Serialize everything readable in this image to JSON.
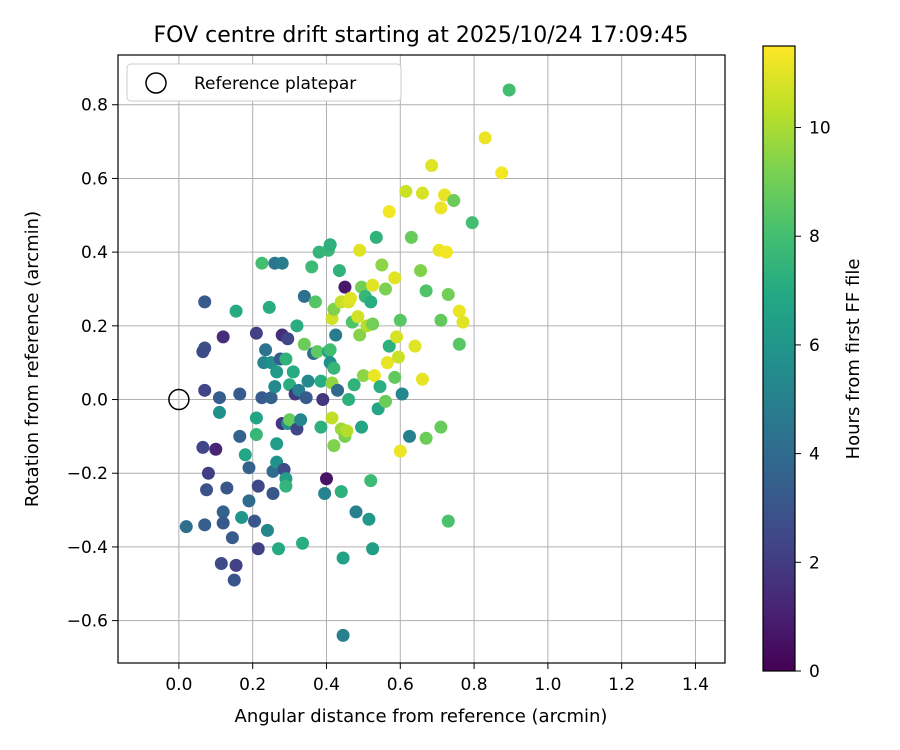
{
  "chart_data": {
    "type": "scatter",
    "title": "FOV centre drift starting at 2025/10/24 17:09:45",
    "xlabel": "Angular distance from reference (arcmin)",
    "ylabel": "Rotation from reference (arcmin)",
    "xlim": [
      -0.165,
      1.48
    ],
    "ylim": [
      -0.715,
      0.935
    ],
    "xticks": [
      0.0,
      0.2,
      0.4,
      0.6,
      0.8,
      1.0,
      1.2,
      1.4
    ],
    "xtick_labels": [
      "0.0",
      "0.2",
      "0.4",
      "0.6",
      "0.8",
      "1.0",
      "1.2",
      "1.4"
    ],
    "yticks": [
      -0.6,
      -0.4,
      -0.2,
      0.0,
      0.2,
      0.4,
      0.6,
      0.8
    ],
    "ytick_labels": [
      "−0.6",
      "−0.4",
      "−0.2",
      "0.0",
      "0.2",
      "0.4",
      "0.6",
      "0.8"
    ],
    "grid": true,
    "legend": {
      "position": "top-left",
      "label": "Reference platepar"
    },
    "reference_point": {
      "x": 0.0,
      "y": 0.0
    },
    "colorbar": {
      "label": "Hours from first FF file",
      "range": [
        0,
        11.5
      ],
      "ticks": [
        0,
        2,
        4,
        6,
        8,
        10
      ],
      "tick_labels": [
        "0",
        "2",
        "4",
        "6",
        "8",
        "10"
      ],
      "colormap": "viridis"
    },
    "points": [
      {
        "x": 0.07,
        "y": 0.265,
        "h": 3.2
      },
      {
        "x": 0.07,
        "y": 0.14,
        "h": 2.8
      },
      {
        "x": 0.065,
        "y": 0.13,
        "h": 2.6
      },
      {
        "x": 0.12,
        "y": 0.17,
        "h": 1.5
      },
      {
        "x": 0.07,
        "y": 0.025,
        "h": 2.3
      },
      {
        "x": 0.11,
        "y": 0.005,
        "h": 3.4
      },
      {
        "x": 0.065,
        "y": -0.13,
        "h": 2.4
      },
      {
        "x": 0.1,
        "y": -0.135,
        "h": 1.2
      },
      {
        "x": 0.08,
        "y": -0.2,
        "h": 2.1
      },
      {
        "x": 0.075,
        "y": -0.245,
        "h": 2.9
      },
      {
        "x": 0.13,
        "y": -0.24,
        "h": 3.1
      },
      {
        "x": 0.02,
        "y": -0.345,
        "h": 4.2
      },
      {
        "x": 0.07,
        "y": -0.34,
        "h": 3.4
      },
      {
        "x": 0.12,
        "y": -0.305,
        "h": 3.6
      },
      {
        "x": 0.12,
        "y": -0.335,
        "h": 3.2
      },
      {
        "x": 0.145,
        "y": -0.375,
        "h": 3.3
      },
      {
        "x": 0.115,
        "y": -0.445,
        "h": 2.6
      },
      {
        "x": 0.155,
        "y": -0.45,
        "h": 2.2
      },
      {
        "x": 0.15,
        "y": -0.49,
        "h": 3.0
      },
      {
        "x": 0.11,
        "y": -0.035,
        "h": 5.7
      },
      {
        "x": 0.155,
        "y": 0.24,
        "h": 7.0
      },
      {
        "x": 0.165,
        "y": 0.015,
        "h": 3.3
      },
      {
        "x": 0.165,
        "y": -0.1,
        "h": 3.6
      },
      {
        "x": 0.18,
        "y": -0.15,
        "h": 6.8
      },
      {
        "x": 0.19,
        "y": -0.185,
        "h": 3.6
      },
      {
        "x": 0.19,
        "y": -0.275,
        "h": 4.0
      },
      {
        "x": 0.17,
        "y": -0.32,
        "h": 6.0
      },
      {
        "x": 0.205,
        "y": -0.33,
        "h": 3.1
      },
      {
        "x": 0.21,
        "y": 0.18,
        "h": 2.2
      },
      {
        "x": 0.21,
        "y": -0.05,
        "h": 6.7
      },
      {
        "x": 0.21,
        "y": -0.095,
        "h": 7.6
      },
      {
        "x": 0.215,
        "y": -0.235,
        "h": 2.5
      },
      {
        "x": 0.215,
        "y": -0.405,
        "h": 2.2
      },
      {
        "x": 0.225,
        "y": 0.005,
        "h": 3.3
      },
      {
        "x": 0.225,
        "y": 0.37,
        "h": 8.0
      },
      {
        "x": 0.23,
        "y": 0.1,
        "h": 5.2
      },
      {
        "x": 0.235,
        "y": 0.135,
        "h": 4.4
      },
      {
        "x": 0.24,
        "y": -0.355,
        "h": 5.2
      },
      {
        "x": 0.245,
        "y": 0.25,
        "h": 7.1
      },
      {
        "x": 0.25,
        "y": 0.1,
        "h": 5.7
      },
      {
        "x": 0.25,
        "y": 0.005,
        "h": 3.6
      },
      {
        "x": 0.255,
        "y": -0.255,
        "h": 3.1
      },
      {
        "x": 0.255,
        "y": -0.195,
        "h": 4.1
      },
      {
        "x": 0.26,
        "y": 0.035,
        "h": 5.4
      },
      {
        "x": 0.26,
        "y": 0.37,
        "h": 4.5
      },
      {
        "x": 0.265,
        "y": -0.12,
        "h": 6.3
      },
      {
        "x": 0.265,
        "y": -0.17,
        "h": 5.8
      },
      {
        "x": 0.265,
        "y": 0.075,
        "h": 6.2
      },
      {
        "x": 0.27,
        "y": -0.405,
        "h": 7.0
      },
      {
        "x": 0.275,
        "y": 0.11,
        "h": 3.3
      },
      {
        "x": 0.28,
        "y": 0.37,
        "h": 4.8
      },
      {
        "x": 0.28,
        "y": -0.065,
        "h": 1.8
      },
      {
        "x": 0.28,
        "y": 0.175,
        "h": 1.5
      },
      {
        "x": 0.285,
        "y": -0.19,
        "h": 2.6
      },
      {
        "x": 0.29,
        "y": 0.11,
        "h": 7.4
      },
      {
        "x": 0.29,
        "y": -0.215,
        "h": 6.4
      },
      {
        "x": 0.29,
        "y": -0.235,
        "h": 7.5
      },
      {
        "x": 0.295,
        "y": 0.165,
        "h": 2.4
      },
      {
        "x": 0.295,
        "y": -0.065,
        "h": 5.8
      },
      {
        "x": 0.3,
        "y": 0.04,
        "h": 7.2
      },
      {
        "x": 0.3,
        "y": -0.055,
        "h": 8.8
      },
      {
        "x": 0.31,
        "y": 0.075,
        "h": 7.0
      },
      {
        "x": 0.315,
        "y": 0.015,
        "h": 1.9
      },
      {
        "x": 0.32,
        "y": 0.2,
        "h": 7.2
      },
      {
        "x": 0.32,
        "y": -0.08,
        "h": 2.4
      },
      {
        "x": 0.325,
        "y": 0.025,
        "h": 4.9
      },
      {
        "x": 0.33,
        "y": -0.055,
        "h": 5.3
      },
      {
        "x": 0.335,
        "y": -0.39,
        "h": 7.2
      },
      {
        "x": 0.34,
        "y": 0.28,
        "h": 4.3
      },
      {
        "x": 0.34,
        "y": 0.15,
        "h": 8.9
      },
      {
        "x": 0.345,
        "y": 0.005,
        "h": 3.3
      },
      {
        "x": 0.35,
        "y": 0.05,
        "h": 5.4
      },
      {
        "x": 0.36,
        "y": 0.36,
        "h": 7.8
      },
      {
        "x": 0.365,
        "y": 0.125,
        "h": 4.1
      },
      {
        "x": 0.37,
        "y": 0.265,
        "h": 8.4
      },
      {
        "x": 0.375,
        "y": 0.13,
        "h": 8.6
      },
      {
        "x": 0.38,
        "y": 0.4,
        "h": 7.5
      },
      {
        "x": 0.385,
        "y": -0.075,
        "h": 7.3
      },
      {
        "x": 0.385,
        "y": 0.05,
        "h": 7.1
      },
      {
        "x": 0.39,
        "y": 0.0,
        "h": 1.8
      },
      {
        "x": 0.395,
        "y": -0.255,
        "h": 5.1
      },
      {
        "x": 0.4,
        "y": -0.215,
        "h": 0.6
      },
      {
        "x": 0.405,
        "y": 0.405,
        "h": 7.6
      },
      {
        "x": 0.405,
        "y": 0.13,
        "h": 6.6
      },
      {
        "x": 0.41,
        "y": 0.135,
        "h": 7.9
      },
      {
        "x": 0.41,
        "y": 0.1,
        "h": 5.7
      },
      {
        "x": 0.41,
        "y": 0.42,
        "h": 7.3
      },
      {
        "x": 0.415,
        "y": 0.045,
        "h": 9.6
      },
      {
        "x": 0.415,
        "y": -0.05,
        "h": 10.4
      },
      {
        "x": 0.415,
        "y": 0.22,
        "h": 10.7
      },
      {
        "x": 0.42,
        "y": 0.245,
        "h": 9.3
      },
      {
        "x": 0.42,
        "y": 0.085,
        "h": 7.6
      },
      {
        "x": 0.42,
        "y": -0.125,
        "h": 9.3
      },
      {
        "x": 0.425,
        "y": 0.175,
        "h": 4.8
      },
      {
        "x": 0.43,
        "y": 0.025,
        "h": 4.0
      },
      {
        "x": 0.435,
        "y": 0.35,
        "h": 7.4
      },
      {
        "x": 0.44,
        "y": 0.265,
        "h": 10.5
      },
      {
        "x": 0.44,
        "y": -0.08,
        "h": 9.8
      },
      {
        "x": 0.44,
        "y": -0.25,
        "h": 7.3
      },
      {
        "x": 0.445,
        "y": -0.43,
        "h": 6.6
      },
      {
        "x": 0.445,
        "y": -0.64,
        "h": 5.0
      },
      {
        "x": 0.45,
        "y": 0.305,
        "h": 0.8
      },
      {
        "x": 0.45,
        "y": -0.1,
        "h": 9.2
      },
      {
        "x": 0.455,
        "y": -0.085,
        "h": 10.2
      },
      {
        "x": 0.46,
        "y": 0.265,
        "h": 10.8
      },
      {
        "x": 0.46,
        "y": 0.0,
        "h": 7.3
      },
      {
        "x": 0.465,
        "y": 0.275,
        "h": 11.0
      },
      {
        "x": 0.47,
        "y": 0.21,
        "h": 8.3
      },
      {
        "x": 0.475,
        "y": 0.04,
        "h": 7.4
      },
      {
        "x": 0.48,
        "y": -0.305,
        "h": 5.0
      },
      {
        "x": 0.485,
        "y": 0.225,
        "h": 10.7
      },
      {
        "x": 0.49,
        "y": 0.405,
        "h": 11.0
      },
      {
        "x": 0.49,
        "y": 0.175,
        "h": 9.4
      },
      {
        "x": 0.495,
        "y": 0.305,
        "h": 9.0
      },
      {
        "x": 0.495,
        "y": -0.075,
        "h": 6.7
      },
      {
        "x": 0.5,
        "y": 0.065,
        "h": 9.5
      },
      {
        "x": 0.505,
        "y": 0.28,
        "h": 7.6
      },
      {
        "x": 0.51,
        "y": 0.2,
        "h": 10.2
      },
      {
        "x": 0.515,
        "y": -0.325,
        "h": 6.1
      },
      {
        "x": 0.52,
        "y": 0.265,
        "h": 7.1
      },
      {
        "x": 0.52,
        "y": -0.22,
        "h": 7.8
      },
      {
        "x": 0.525,
        "y": 0.31,
        "h": 11.0
      },
      {
        "x": 0.525,
        "y": 0.205,
        "h": 9.0
      },
      {
        "x": 0.525,
        "y": -0.405,
        "h": 6.4
      },
      {
        "x": 0.53,
        "y": 0.065,
        "h": 11.2
      },
      {
        "x": 0.535,
        "y": 0.44,
        "h": 7.4
      },
      {
        "x": 0.54,
        "y": -0.025,
        "h": 6.8
      },
      {
        "x": 0.545,
        "y": 0.035,
        "h": 7.2
      },
      {
        "x": 0.55,
        "y": 0.365,
        "h": 9.5
      },
      {
        "x": 0.56,
        "y": 0.3,
        "h": 9.2
      },
      {
        "x": 0.56,
        "y": -0.005,
        "h": 8.9
      },
      {
        "x": 0.565,
        "y": 0.1,
        "h": 11.1
      },
      {
        "x": 0.57,
        "y": 0.51,
        "h": 11.3
      },
      {
        "x": 0.57,
        "y": 0.145,
        "h": 7.3
      },
      {
        "x": 0.585,
        "y": 0.33,
        "h": 11.0
      },
      {
        "x": 0.585,
        "y": 0.06,
        "h": 8.7
      },
      {
        "x": 0.59,
        "y": 0.17,
        "h": 10.8
      },
      {
        "x": 0.595,
        "y": 0.115,
        "h": 10.6
      },
      {
        "x": 0.6,
        "y": 0.215,
        "h": 8.5
      },
      {
        "x": 0.6,
        "y": -0.14,
        "h": 11.2
      },
      {
        "x": 0.605,
        "y": 0.015,
        "h": 5.3
      },
      {
        "x": 0.615,
        "y": 0.565,
        "h": 10.6
      },
      {
        "x": 0.625,
        "y": -0.1,
        "h": 5.0
      },
      {
        "x": 0.63,
        "y": 0.44,
        "h": 8.8
      },
      {
        "x": 0.64,
        "y": 0.145,
        "h": 11.0
      },
      {
        "x": 0.655,
        "y": 0.35,
        "h": 9.3
      },
      {
        "x": 0.66,
        "y": 0.56,
        "h": 10.8
      },
      {
        "x": 0.66,
        "y": 0.055,
        "h": 11.1
      },
      {
        "x": 0.67,
        "y": 0.295,
        "h": 8.3
      },
      {
        "x": 0.67,
        "y": -0.105,
        "h": 8.9
      },
      {
        "x": 0.685,
        "y": 0.635,
        "h": 11.0
      },
      {
        "x": 0.705,
        "y": 0.405,
        "h": 11.2
      },
      {
        "x": 0.71,
        "y": 0.215,
        "h": 8.7
      },
      {
        "x": 0.71,
        "y": 0.52,
        "h": 11.2
      },
      {
        "x": 0.71,
        "y": -0.075,
        "h": 8.8
      },
      {
        "x": 0.72,
        "y": 0.555,
        "h": 11.1
      },
      {
        "x": 0.725,
        "y": 0.4,
        "h": 11.3
      },
      {
        "x": 0.73,
        "y": 0.285,
        "h": 9.0
      },
      {
        "x": 0.73,
        "y": -0.33,
        "h": 8.2
      },
      {
        "x": 0.745,
        "y": 0.54,
        "h": 8.9
      },
      {
        "x": 0.76,
        "y": 0.24,
        "h": 11.2
      },
      {
        "x": 0.76,
        "y": 0.15,
        "h": 8.5
      },
      {
        "x": 0.77,
        "y": 0.21,
        "h": 11.0
      },
      {
        "x": 0.795,
        "y": 0.48,
        "h": 8.0
      },
      {
        "x": 0.83,
        "y": 0.71,
        "h": 11.2
      },
      {
        "x": 0.875,
        "y": 0.615,
        "h": 11.3
      },
      {
        "x": 0.895,
        "y": 0.84,
        "h": 8.0
      }
    ]
  }
}
